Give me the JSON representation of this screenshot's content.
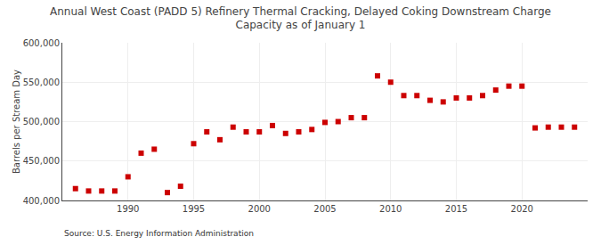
{
  "chart_data": {
    "type": "scatter",
    "title": "Annual West Coast (PADD 5) Refinery Thermal Cracking, Delayed Coking Downstream Charge\nCapacity as of January 1",
    "ylabel": "Barrels per Stream Day",
    "source": "Source: U.S. Energy Information Administration",
    "x": [
      1986,
      1987,
      1988,
      1989,
      1990,
      1991,
      1992,
      1993,
      1994,
      1995,
      1996,
      1997,
      1998,
      1999,
      2000,
      2001,
      2002,
      2003,
      2004,
      2005,
      2006,
      2007,
      2008,
      2009,
      2010,
      2011,
      2012,
      2013,
      2014,
      2015,
      2016,
      2017,
      2018,
      2019,
      2020,
      2021,
      2022,
      2023,
      2024
    ],
    "values": [
      415000,
      412000,
      412000,
      412000,
      430000,
      460000,
      465000,
      410000,
      418000,
      472000,
      487000,
      477000,
      493000,
      487000,
      487000,
      495000,
      485000,
      487000,
      490000,
      499000,
      500000,
      505000,
      505000,
      558000,
      550000,
      533000,
      533000,
      527000,
      525000,
      530000,
      530000,
      533000,
      540000,
      545000,
      545000,
      492000,
      493000,
      493000,
      493000
    ],
    "color": "#cc0000",
    "marker": "square",
    "xlim": [
      1985,
      2025
    ],
    "xticks": [
      1990,
      1995,
      2000,
      2005,
      2010,
      2015,
      2020
    ],
    "ylim": [
      400000,
      600000
    ],
    "yticks": [
      {
        "value": 400000,
        "label": "400,000"
      },
      {
        "value": 450000,
        "label": "450,000"
      },
      {
        "value": 500000,
        "label": "500,000"
      },
      {
        "value": 550000,
        "label": "550,000"
      },
      {
        "value": 600000,
        "label": "600,000"
      }
    ],
    "grid": true
  }
}
